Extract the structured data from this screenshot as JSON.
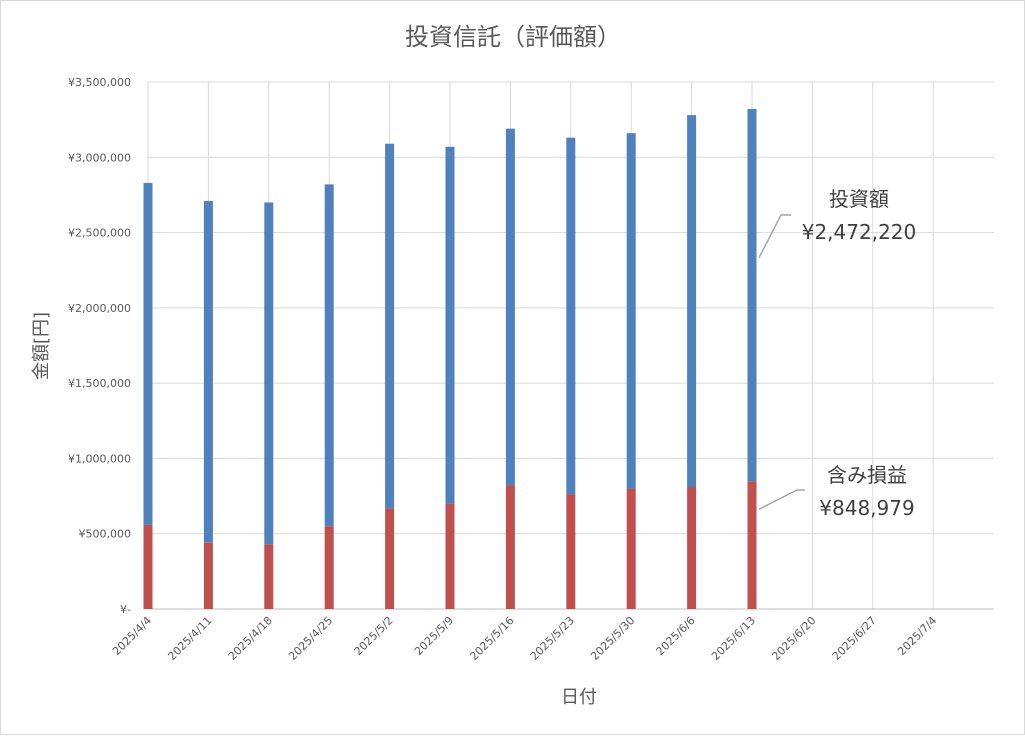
{
  "chart_data": {
    "type": "bar",
    "stacked": true,
    "title": "投資信託（評価額）",
    "xlabel": "日付",
    "ylabel": "金額[円]",
    "ylim": [
      0,
      3500000
    ],
    "grid": true,
    "y_tick_labels": [
      "¥-",
      "¥500,000",
      "¥1,000,000",
      "¥1,500,000",
      "¥2,000,000",
      "¥2,500,000",
      "¥3,000,000",
      "¥3,500,000"
    ],
    "categories": [
      "2025/4/4",
      "2025/4/11",
      "2025/4/18",
      "2025/4/25",
      "2025/5/2",
      "2025/5/9",
      "2025/5/16",
      "2025/5/23",
      "2025/5/30",
      "2025/6/6",
      "2025/6/13",
      "2025/6/20",
      "2025/6/27",
      "2025/7/4"
    ],
    "series": [
      {
        "name": "含み損益",
        "color": "#c0504d",
        "values": [
          560000,
          440000,
          430000,
          550000,
          670000,
          700000,
          820000,
          760000,
          800000,
          810000,
          848979,
          null,
          null,
          null
        ]
      },
      {
        "name": "投資額",
        "color": "#4f81bd",
        "values": [
          2270000,
          2270000,
          2270000,
          2270000,
          2420000,
          2370000,
          2370000,
          2370000,
          2360000,
          2470000,
          2472220,
          null,
          null,
          null
        ]
      }
    ],
    "annotations": [
      {
        "series": "投資額",
        "label": "投資額",
        "value_text": "¥2,472,220"
      },
      {
        "series": "含み損益",
        "label": "含み損益",
        "value_text": "¥848,979"
      }
    ]
  }
}
